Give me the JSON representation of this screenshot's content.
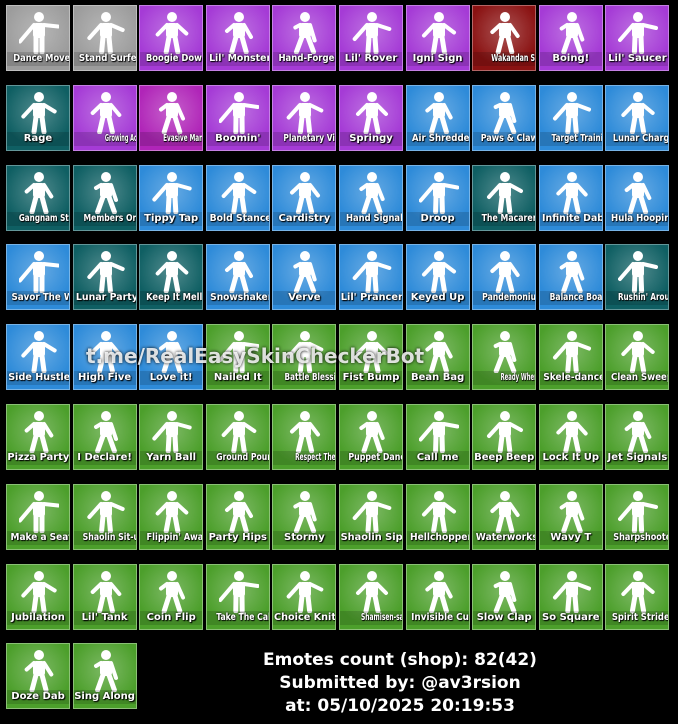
{
  "emotes": [
    {
      "label": "Dance Moves",
      "color": "#9c9c9c"
    },
    {
      "label": "Stand Surfer",
      "color": "#9c9c9c"
    },
    {
      "label": "Boogie Down",
      "color": "#a53bd6"
    },
    {
      "label": "Lil' Monster",
      "color": "#a53bd6"
    },
    {
      "label": "Hand-Forged",
      "color": "#a53bd6"
    },
    {
      "label": "Lil' Rover",
      "color": "#a53bd6"
    },
    {
      "label": "Igni Sign",
      "color": "#a53bd6"
    },
    {
      "label": "Wakandan Salute",
      "color": "#8a1212"
    },
    {
      "label": "Boing!",
      "color": "#a53bd6"
    },
    {
      "label": "Lil' Saucer",
      "color": "#a53bd6"
    },
    {
      "label": "Rage",
      "color": "#0f5f63"
    },
    {
      "label": "Growing Achievement",
      "color": "#a53bd6"
    },
    {
      "label": "Evasive Maneuvers",
      "color": "#b025b8"
    },
    {
      "label": "Boomin'",
      "color": "#a53bd6"
    },
    {
      "label": "Planetary Vibe",
      "color": "#a53bd6"
    },
    {
      "label": "Springy",
      "color": "#a53bd6"
    },
    {
      "label": "Air Shredder",
      "color": "#2e8bd9"
    },
    {
      "label": "Paws & Claws",
      "color": "#2e8bd9"
    },
    {
      "label": "Target Training",
      "color": "#2e8bd9"
    },
    {
      "label": "Lunar Charge",
      "color": "#2e8bd9"
    },
    {
      "label": "Gangnam Style",
      "color": "#0f5f63"
    },
    {
      "label": "Members Only",
      "color": "#0f5f63"
    },
    {
      "label": "Tippy Tap",
      "color": "#2e8bd9"
    },
    {
      "label": "Bold Stance",
      "color": "#2e8bd9"
    },
    {
      "label": "Cardistry",
      "color": "#2e8bd9"
    },
    {
      "label": "Hand Signals",
      "color": "#2e8bd9"
    },
    {
      "label": "Droop",
      "color": "#2e8bd9"
    },
    {
      "label": "The Macarena",
      "color": "#0f5f63"
    },
    {
      "label": "Infinite Dab",
      "color": "#2e8bd9"
    },
    {
      "label": "Hula Hoopin'",
      "color": "#2e8bd9"
    },
    {
      "label": "Savor The W",
      "color": "#2e8bd9"
    },
    {
      "label": "Lunar Party",
      "color": "#0f5f63"
    },
    {
      "label": "Keep It Mello",
      "color": "#0f5f63"
    },
    {
      "label": "Snowshaker",
      "color": "#2e8bd9"
    },
    {
      "label": "Verve",
      "color": "#2e8bd9"
    },
    {
      "label": "Lil' Prancer",
      "color": "#2e8bd9"
    },
    {
      "label": "Keyed Up",
      "color": "#2e8bd9"
    },
    {
      "label": "Pandemonium",
      "color": "#2e8bd9"
    },
    {
      "label": "Balance Board",
      "color": "#2e8bd9"
    },
    {
      "label": "Rushin' Around",
      "color": "#0f5f63"
    },
    {
      "label": "Side Hustle",
      "color": "#2e8bd9"
    },
    {
      "label": "High Five",
      "color": "#2e8bd9"
    },
    {
      "label": "Love it!",
      "color": "#2e8bd9"
    },
    {
      "label": "Nailed It",
      "color": "#4c9f2b"
    },
    {
      "label": "Battle Blessing",
      "color": "#4c9f2b"
    },
    {
      "label": "Fist Bump",
      "color": "#4c9f2b"
    },
    {
      "label": "Bean Bag",
      "color": "#4c9f2b"
    },
    {
      "label": "Ready When You Are",
      "color": "#4c9f2b"
    },
    {
      "label": "Skele-dance",
      "color": "#4c9f2b"
    },
    {
      "label": "Clean Sweep",
      "color": "#4c9f2b"
    },
    {
      "label": "Pizza Party",
      "color": "#4c9f2b"
    },
    {
      "label": "I Declare!",
      "color": "#4c9f2b"
    },
    {
      "label": "Yarn Ball",
      "color": "#4c9f2b"
    },
    {
      "label": "Ground Pound",
      "color": "#4c9f2b"
    },
    {
      "label": "Respect The Peace",
      "color": "#4c9f2b"
    },
    {
      "label": "Puppet Dance",
      "color": "#4c9f2b"
    },
    {
      "label": "Call me",
      "color": "#4c9f2b"
    },
    {
      "label": "Beep Beep",
      "color": "#4c9f2b"
    },
    {
      "label": "Lock It Up",
      "color": "#4c9f2b"
    },
    {
      "label": "Jet Signals",
      "color": "#4c9f2b"
    },
    {
      "label": "Make a Seat",
      "color": "#4c9f2b"
    },
    {
      "label": "Shaolin Sit-up",
      "color": "#4c9f2b"
    },
    {
      "label": "Flippin' Away",
      "color": "#4c9f2b"
    },
    {
      "label": "Party Hips",
      "color": "#4c9f2b"
    },
    {
      "label": "Stormy",
      "color": "#4c9f2b"
    },
    {
      "label": "Shaolin Sip",
      "color": "#4c9f2b"
    },
    {
      "label": "Hellchopper",
      "color": "#4c9f2b"
    },
    {
      "label": "Waterworks",
      "color": "#4c9f2b"
    },
    {
      "label": "Wavy T",
      "color": "#4c9f2b"
    },
    {
      "label": "Sharpshooter",
      "color": "#4c9f2b"
    },
    {
      "label": "Jubilation",
      "color": "#4c9f2b"
    },
    {
      "label": "Lil' Tank",
      "color": "#4c9f2b"
    },
    {
      "label": "Coin Flip",
      "color": "#4c9f2b"
    },
    {
      "label": "Take The Cake",
      "color": "#4c9f2b"
    },
    {
      "label": "Choice Knit",
      "color": "#4c9f2b"
    },
    {
      "label": "Shamisen-sational",
      "color": "#4c9f2b"
    },
    {
      "label": "Invisible Cut",
      "color": "#4c9f2b"
    },
    {
      "label": "Slow Clap",
      "color": "#4c9f2b"
    },
    {
      "label": "So Square",
      "color": "#4c9f2b"
    },
    {
      "label": "Spirit Strider",
      "color": "#4c9f2b"
    },
    {
      "label": "Doze Dab",
      "color": "#4c9f2b"
    },
    {
      "label": "Sing Along",
      "color": "#4c9f2b"
    }
  ],
  "watermark": "t.me/RealEasySkinCheckerBot",
  "footer": [
    "Emotes count (shop): 82(42)",
    "Submitted by: @av3rsion",
    "at: 05/10/2025 20:19:53"
  ]
}
